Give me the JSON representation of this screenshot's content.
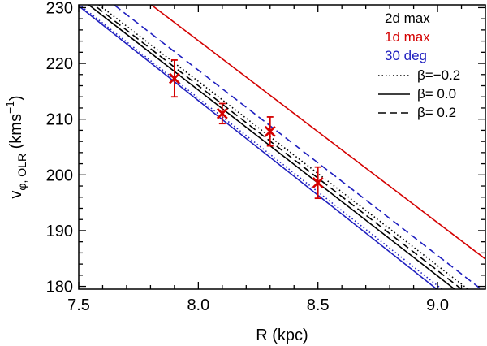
{
  "chart_data": {
    "type": "line",
    "title": "",
    "xlabel": "R (kpc)",
    "ylabel": {
      "main": "v",
      "subscript": "φ, OLR",
      "unit_open": " (kms",
      "unit_exp": "−1",
      "unit_close": ")"
    },
    "xlim": [
      7.5,
      9.2
    ],
    "ylim": [
      179.5,
      230.5
    ],
    "xticks": [
      7.5,
      8.0,
      8.5,
      9.0
    ],
    "xtick_labels": [
      "7.5",
      "8.0",
      "8.5",
      "9.0"
    ],
    "yticks": [
      180,
      190,
      200,
      210,
      220,
      230
    ],
    "ytick_labels": [
      "180",
      "190",
      "200",
      "210",
      "220",
      "230"
    ],
    "grid": false,
    "legend": {
      "location": "top-right",
      "color_entries": [
        {
          "label": "2d max",
          "color": "#000000"
        },
        {
          "label": "1d max",
          "color": "#d40000"
        },
        {
          "label": "30 deg",
          "color": "#1f1fbf"
        }
      ],
      "style_entries": [
        {
          "label": "β=−0.2",
          "style": "dotted"
        },
        {
          "label": "β= 0.0",
          "style": "solid"
        },
        {
          "label": "β= 0.2",
          "style": "dashed"
        }
      ]
    },
    "series": [
      {
        "name": "2d max β=-0.2",
        "color": "#000000",
        "style": "dotted",
        "x": [
          7.5,
          9.2
        ],
        "y": [
          233.3,
          177.1
        ]
      },
      {
        "name": "2d max β=0.0",
        "color": "#000000",
        "style": "solid",
        "x": [
          7.5,
          9.2
        ],
        "y": [
          231.9,
          175.2
        ]
      },
      {
        "name": "2d max β=0.2",
        "color": "#000000",
        "style": "dashed",
        "x": [
          7.5,
          9.2
        ],
        "y": [
          232.6,
          176.2
        ]
      },
      {
        "name": "1d max β=0.0",
        "color": "#d40000",
        "style": "solid",
        "x": [
          7.5,
          9.2
        ],
        "y": [
          240.4,
          184.9
        ]
      },
      {
        "name": "30 deg β=-0.2",
        "color": "#1f1fbf",
        "style": "dotted",
        "x": [
          7.5,
          9.2
        ],
        "y": [
          230.6,
          173.4
        ]
      },
      {
        "name": "30 deg β=0.0",
        "color": "#1f1fbf",
        "style": "solid",
        "x": [
          7.5,
          9.2
        ],
        "y": [
          230.3,
          172.6
        ]
      },
      {
        "name": "30 deg β=0.2",
        "color": "#1f1fbf",
        "style": "dashed",
        "x": [
          7.5,
          9.2
        ],
        "y": [
          235.4,
          178.9
        ]
      }
    ],
    "points": {
      "name": "measurements",
      "color": "#d40000",
      "marker": "x",
      "x": [
        7.9,
        8.1,
        8.3,
        8.5
      ],
      "y": [
        217.3,
        211.0,
        207.8,
        198.6
      ],
      "yerr": [
        3.3,
        1.8,
        2.6,
        2.8
      ]
    }
  }
}
